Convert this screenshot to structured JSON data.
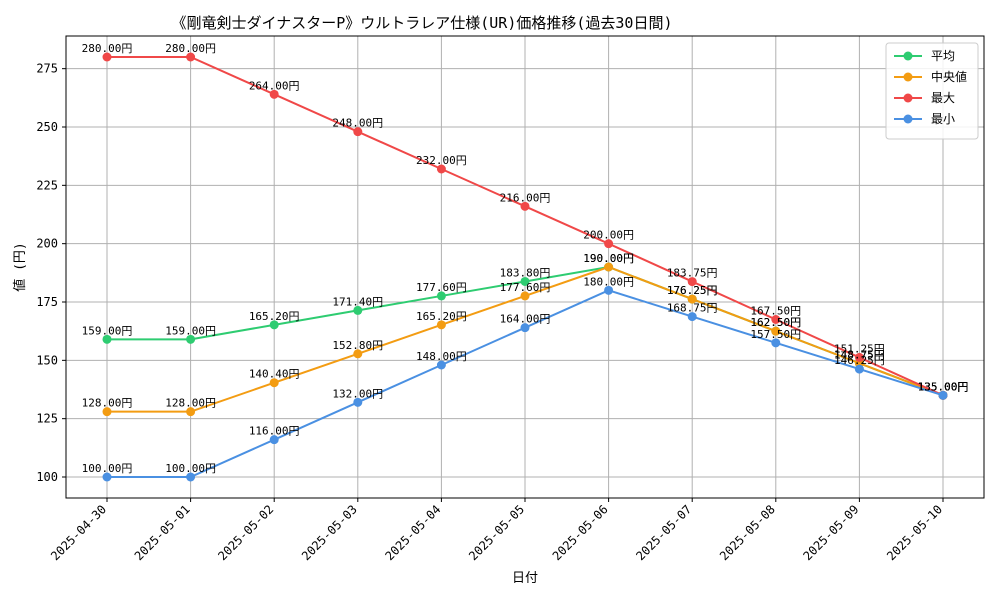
{
  "chart_data": {
    "type": "line",
    "title": "《剛竜剣士ダイナスターP》ウルトラレア仕様(UR)価格推移(過去30日間)",
    "xlabel": "日付",
    "ylabel": "値 (円)",
    "categories": [
      "2025-04-30",
      "2025-05-01",
      "2025-05-02",
      "2025-05-03",
      "2025-05-04",
      "2025-05-05",
      "2025-05-06",
      "2025-05-07",
      "2025-05-08",
      "2025-05-09",
      "2025-05-10"
    ],
    "yticks": [
      100,
      125,
      150,
      175,
      200,
      225,
      250,
      275
    ],
    "ylim": [
      91,
      289
    ],
    "grid": true,
    "legend_position": "top-right",
    "value_suffix": "円",
    "series": [
      {
        "name": "平均",
        "color": "#2ecc71",
        "values": [
          159.0,
          159.0,
          165.2,
          171.4,
          177.6,
          183.8,
          190.0,
          176.25,
          162.5,
          148.75,
          135.0
        ]
      },
      {
        "name": "中央値",
        "color": "#f39c12",
        "values": [
          128.0,
          128.0,
          140.4,
          152.8,
          165.2,
          177.6,
          190.0,
          176.25,
          162.5,
          148.75,
          135.0
        ]
      },
      {
        "name": "最大",
        "color": "#f04848",
        "values": [
          280.0,
          280.0,
          264.0,
          248.0,
          232.0,
          216.0,
          200.0,
          183.75,
          167.5,
          151.25,
          135.0
        ]
      },
      {
        "name": "最小",
        "color": "#4a90e2",
        "values": [
          100.0,
          100.0,
          116.0,
          132.0,
          148.0,
          164.0,
          180.0,
          168.75,
          157.5,
          146.25,
          135.0
        ]
      }
    ]
  }
}
